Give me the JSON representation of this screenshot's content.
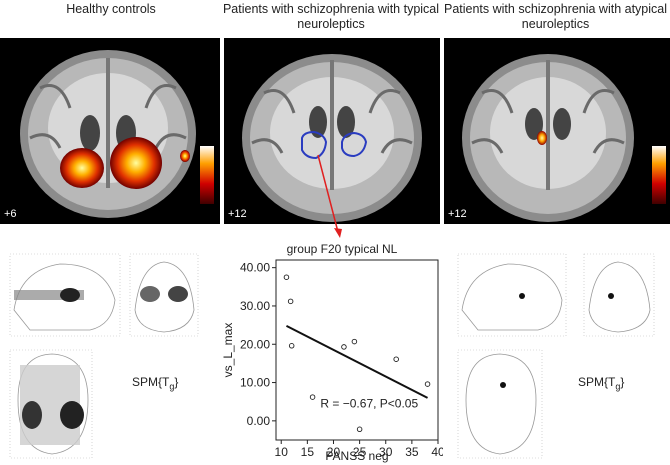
{
  "columns": [
    {
      "title": "Healthy controls",
      "slice": "+6"
    },
    {
      "title": "Patients with schizophrenia with typical neuroleptics",
      "slice": "+12"
    },
    {
      "title": "Patients with schizophrenia with atypical neuroleptics",
      "slice": "+12"
    }
  ],
  "spm_label": {
    "main": "SPM{T",
    "sub": "g",
    "end": "}"
  },
  "chart_data": {
    "type": "scatter",
    "title": "group F20 typical NL",
    "xlabel": "PANSS neg",
    "ylabel": "vs_L_max",
    "xlim": [
      9,
      40
    ],
    "ylim": [
      -5,
      42
    ],
    "x_ticks": [
      10,
      15,
      20,
      25,
      30,
      35,
      40
    ],
    "y_ticks": [
      0,
      10,
      20,
      30,
      40
    ],
    "x_tick_labels": [
      "10",
      "15",
      "20",
      "25",
      "30",
      "35",
      "40"
    ],
    "y_tick_labels": [
      "0.00",
      "10.00",
      "20.00",
      "30.00",
      "40.00"
    ],
    "points": [
      {
        "x": 11,
        "y": 37.5
      },
      {
        "x": 11.8,
        "y": 31.2
      },
      {
        "x": 12,
        "y": 19.6
      },
      {
        "x": 16,
        "y": 6.2
      },
      {
        "x": 22,
        "y": 19.3
      },
      {
        "x": 24,
        "y": 20.7
      },
      {
        "x": 25,
        "y": -2.2
      },
      {
        "x": 32,
        "y": 16.1
      },
      {
        "x": 38,
        "y": 9.6
      }
    ],
    "fit_line": {
      "x0": 11,
      "y0": 24.8,
      "x1": 38,
      "y1": 6.0
    },
    "annotation": "R = −0.67, P<0.05",
    "grid": false
  }
}
